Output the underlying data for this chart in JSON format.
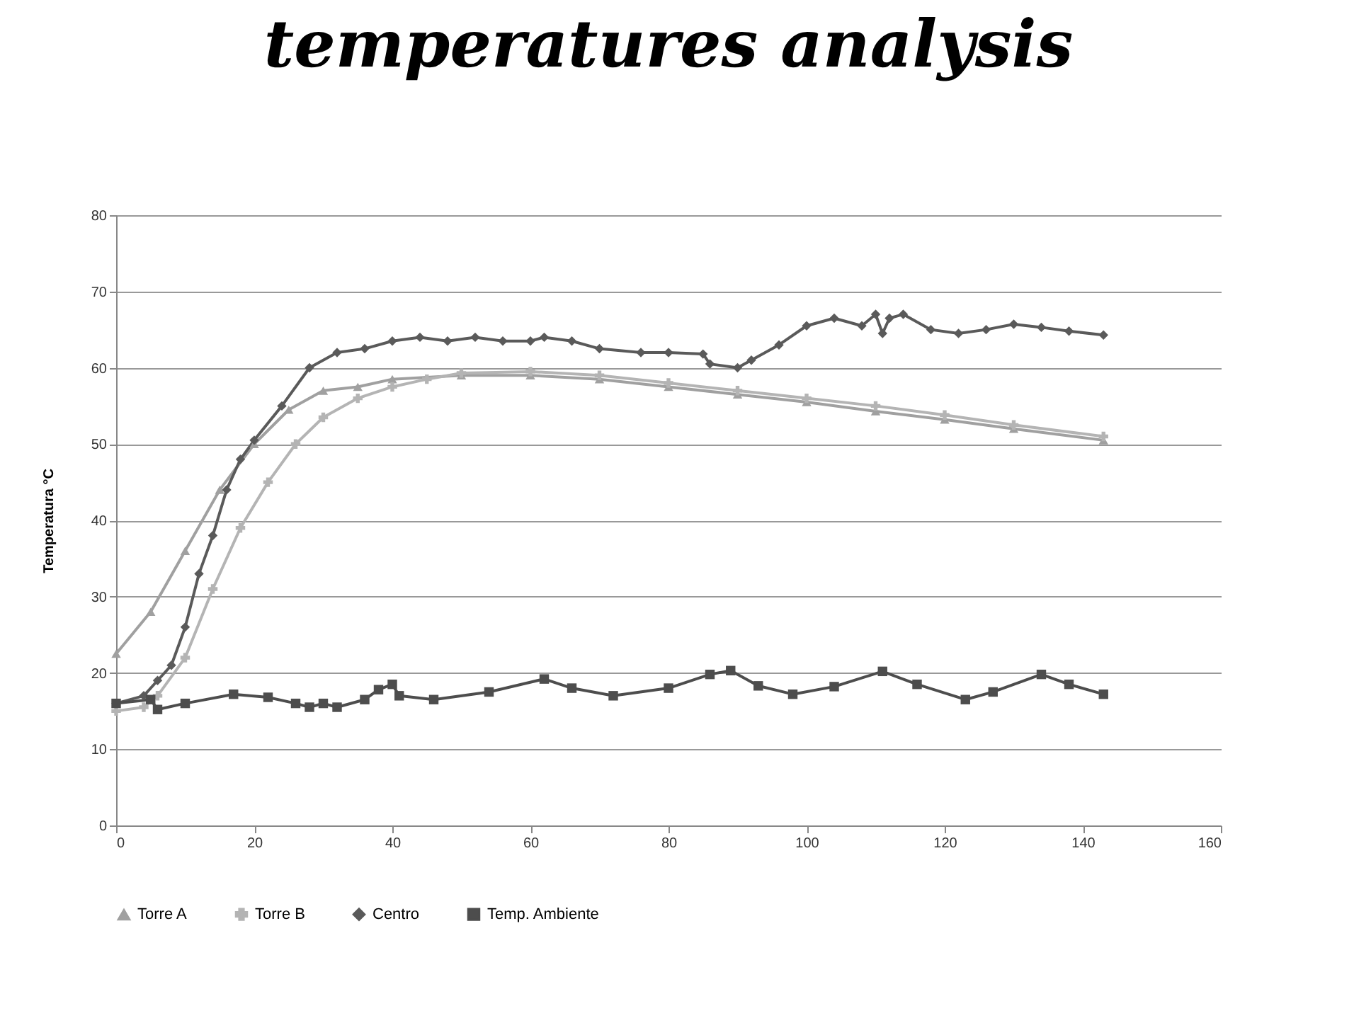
{
  "chart_data": {
    "type": "line",
    "title": "temperatures analysis",
    "ylabel": "Temperatura °C",
    "xlim": [
      0,
      160
    ],
    "xticks": [
      0,
      20,
      40,
      60,
      80,
      100,
      120,
      140,
      160
    ],
    "ylim": [
      0,
      80
    ],
    "yticks": [
      0,
      10,
      20,
      30,
      40,
      50,
      60,
      70,
      80
    ],
    "grid": "y",
    "legend": "bottom",
    "series": [
      {
        "name": "Torre A",
        "color": "#a0a0a0",
        "marker": "triangle",
        "x": [
          0,
          5,
          10,
          15,
          20,
          25,
          30,
          35,
          40,
          50,
          60,
          70,
          80,
          90,
          100,
          110,
          120,
          130,
          143
        ],
        "values": [
          22.5,
          28,
          36,
          44,
          50,
          54.5,
          57,
          57.5,
          58.5,
          59,
          59,
          58.5,
          57.5,
          56.5,
          55.5,
          54.3,
          53.2,
          52,
          50.5
        ]
      },
      {
        "name": "Torre B",
        "color": "#b4b4b4",
        "marker": "cross",
        "x": [
          0,
          4,
          6,
          10,
          14,
          18,
          22,
          26,
          30,
          35,
          40,
          45,
          50,
          60,
          70,
          80,
          90,
          100,
          110,
          120,
          130,
          143
        ],
        "values": [
          15,
          15.5,
          17,
          22,
          31,
          39,
          45,
          50,
          53.5,
          56,
          57.5,
          58.5,
          59.3,
          59.5,
          59,
          58,
          57,
          56,
          55,
          53.8,
          52.5,
          51
        ]
      },
      {
        "name": "Centro",
        "color": "#5a5a5a",
        "marker": "diamond",
        "x": [
          0,
          4,
          6,
          8,
          10,
          12,
          14,
          16,
          18,
          20,
          24,
          28,
          32,
          36,
          40,
          44,
          48,
          52,
          56,
          60,
          62,
          66,
          70,
          76,
          80,
          85,
          86,
          90,
          92,
          96,
          100,
          104,
          108,
          110,
          111,
          112,
          114,
          118,
          122,
          126,
          130,
          134,
          138,
          143
        ],
        "values": [
          16,
          17,
          19,
          21,
          26,
          33,
          38,
          44,
          48,
          50.5,
          55,
          60,
          62,
          62.5,
          63.5,
          64,
          63.5,
          64,
          63.5,
          63.5,
          64,
          63.5,
          62.5,
          62,
          62,
          61.8,
          60.5,
          60,
          61,
          63,
          65.5,
          66.5,
          65.5,
          67,
          64.5,
          66.5,
          67,
          65,
          64.5,
          65,
          65.7,
          65.3,
          64.8,
          64.3
        ]
      },
      {
        "name": "Temp. Ambiente",
        "color": "#4d4d4d",
        "marker": "square",
        "x": [
          0,
          5,
          6,
          10,
          17,
          22,
          26,
          28,
          30,
          32,
          36,
          38,
          40,
          41,
          46,
          54,
          62,
          66,
          72,
          80,
          86,
          89,
          93,
          98,
          104,
          111,
          116,
          123,
          127,
          134,
          138,
          143
        ],
        "values": [
          16,
          16.5,
          15.2,
          16,
          17.2,
          16.8,
          16,
          15.5,
          16,
          15.5,
          16.5,
          17.8,
          18.5,
          17,
          16.5,
          17.5,
          19.2,
          18,
          17,
          18,
          19.8,
          20.3,
          18.3,
          17.2,
          18.2,
          20.2,
          18.5,
          16.5,
          17.5,
          19.8,
          18.5,
          17.2
        ]
      }
    ]
  }
}
